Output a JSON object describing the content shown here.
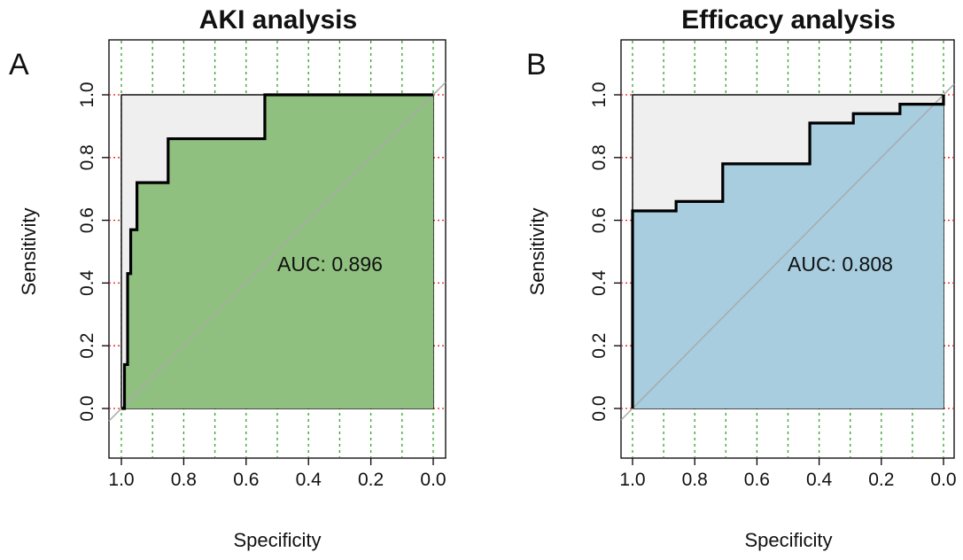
{
  "chart_data": [
    {
      "type": "line",
      "panel_letter": "A",
      "title": "AKI analysis",
      "xlabel": "Specificity",
      "ylabel": "Sensitivity",
      "x_reversed": true,
      "xlim": [
        1.0,
        0.0
      ],
      "ylim": [
        0.0,
        1.0
      ],
      "x_ticks": [
        "1.0",
        "0.8",
        "0.6",
        "0.4",
        "0.2",
        "0.0"
      ],
      "y_ticks": [
        "0.0",
        "0.2",
        "0.4",
        "0.6",
        "0.8",
        "1.0"
      ],
      "grid": true,
      "fill_color": "#8fc07f",
      "auc_label": "AUC: 0.896",
      "auc_value": 0.896,
      "auc_position": [
        0.5,
        0.46
      ],
      "series": [
        {
          "specificity": [
            1.0,
            0.99,
            0.99,
            0.98,
            0.98,
            0.97,
            0.97,
            0.95,
            0.95,
            0.93,
            0.93,
            0.85,
            0.85,
            0.54,
            0.54,
            0.0
          ],
          "sensitivity": [
            0.0,
            0.0,
            0.14,
            0.14,
            0.43,
            0.43,
            0.57,
            0.57,
            0.72,
            0.72,
            0.72,
            0.72,
            0.86,
            0.86,
            1.0,
            1.0
          ]
        }
      ]
    },
    {
      "type": "line",
      "panel_letter": "B",
      "title": "Efficacy analysis",
      "xlabel": "Specificity",
      "ylabel": "Sensitivity",
      "x_reversed": true,
      "xlim": [
        1.0,
        0.0
      ],
      "ylim": [
        0.0,
        1.0
      ],
      "x_ticks": [
        "1.0",
        "0.8",
        "0.6",
        "0.4",
        "0.2",
        "0.0"
      ],
      "y_ticks": [
        "0.0",
        "0.2",
        "0.4",
        "0.6",
        "0.8",
        "1.0"
      ],
      "grid": true,
      "fill_color": "#a7cddf",
      "auc_label": "AUC: 0.808",
      "auc_value": 0.808,
      "auc_position": [
        0.5,
        0.46
      ],
      "series": [
        {
          "specificity": [
            1.0,
            1.0,
            0.86,
            0.86,
            0.71,
            0.71,
            0.43,
            0.43,
            0.29,
            0.29,
            0.14,
            0.14,
            0.0,
            0.0
          ],
          "sensitivity": [
            0.0,
            0.63,
            0.63,
            0.66,
            0.66,
            0.78,
            0.78,
            0.91,
            0.91,
            0.94,
            0.94,
            0.97,
            0.97,
            1.0
          ]
        }
      ]
    }
  ]
}
